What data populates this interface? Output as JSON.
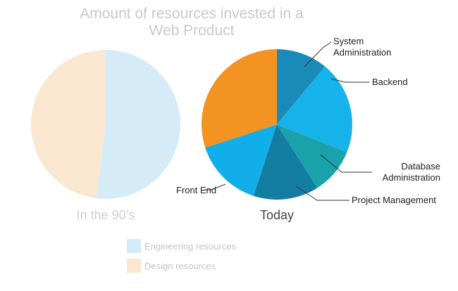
{
  "title": "Amount of resources invested in a Web Product",
  "chart_data": [
    {
      "type": "pie",
      "label": "In the 90’s",
      "categories": [
        "Engineering resources",
        "Design resources"
      ],
      "values": [
        52,
        48
      ],
      "colors": [
        "#d5ecf8",
        "#fbe7d0"
      ],
      "legend": "bottom"
    },
    {
      "type": "pie",
      "label": "Today",
      "categories": [
        "System Administration",
        "Backend",
        "Database Administration",
        "Project Management",
        "Front End",
        null
      ],
      "values": [
        11,
        20,
        10,
        14,
        15,
        30
      ],
      "colors": [
        "#1a8bb9",
        "#16b2ea",
        "#1aa2aa",
        "#137ea1",
        "#12aeea",
        "#f39322"
      ]
    }
  ]
}
